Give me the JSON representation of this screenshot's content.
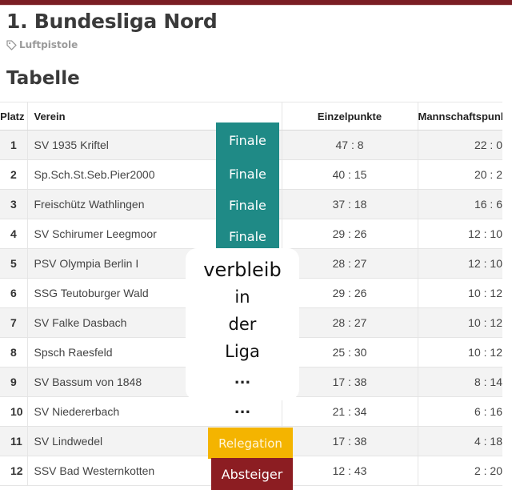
{
  "page": {
    "title": "1. Bundesliga Nord",
    "tag_label": "Luftpistole",
    "tag_icon": "tag-icon",
    "section_heading": "Tabelle"
  },
  "table": {
    "headers": {
      "platz": "Platz",
      "verein": "Verein",
      "einzelpunkte": "Einzelpunkte",
      "mannschaftspunkte": "Mannschaftspunkte"
    },
    "rows": [
      {
        "platz": "1",
        "verein": "SV 1935 Kriftel",
        "einzel": "47 : 8",
        "mann": "22 : 0"
      },
      {
        "platz": "2",
        "verein": "Sp.Sch.St.Seb.Pier2000",
        "einzel": "40 : 15",
        "mann": "20 : 2"
      },
      {
        "platz": "3",
        "verein": "Freischütz Wathlingen",
        "einzel": "37 : 18",
        "mann": "16 : 6"
      },
      {
        "platz": "4",
        "verein": "SV Schirumer Leegmoor",
        "einzel": "29 : 26",
        "mann": "12 : 10"
      },
      {
        "platz": "5",
        "verein": "PSV Olympia Berlin I",
        "einzel": "28 : 27",
        "mann": "12 : 10"
      },
      {
        "platz": "6",
        "verein": "SSG Teutoburger Wald",
        "einzel": "29 : 26",
        "mann": "10 : 12"
      },
      {
        "platz": "7",
        "verein": "SV Falke Dasbach",
        "einzel": "28 : 27",
        "mann": "10 : 12"
      },
      {
        "platz": "8",
        "verein": "Spsch Raesfeld",
        "einzel": "25 : 30",
        "mann": "10 : 12"
      },
      {
        "platz": "9",
        "verein": "SV Bassum von 1848",
        "einzel": "17 : 38",
        "mann": "8 : 14"
      },
      {
        "platz": "10",
        "verein": "SV Niedererbach",
        "einzel": "21 : 34",
        "mann": "6 : 16"
      },
      {
        "platz": "11",
        "verein": "SV Lindwedel",
        "einzel": "17 : 38",
        "mann": "4 : 18"
      },
      {
        "platz": "12",
        "verein": "SSV Bad Westernkotten",
        "einzel": "12 : 43",
        "mann": "2 : 20"
      }
    ]
  },
  "annotations": {
    "finale": [
      "Finale",
      "Finale",
      "Finale",
      "Finale"
    ],
    "verbleib_lines": [
      "verbleib",
      "in",
      "der",
      "Liga"
    ],
    "ellipsis": [
      "...",
      "..."
    ],
    "relegation": "Relegation",
    "absteiger": "Absteiger"
  },
  "colors": {
    "brand_bar": "#7b1e24",
    "finale": "#1f8a86",
    "relegation": "#f4b400",
    "absteiger": "#8c1d22"
  }
}
